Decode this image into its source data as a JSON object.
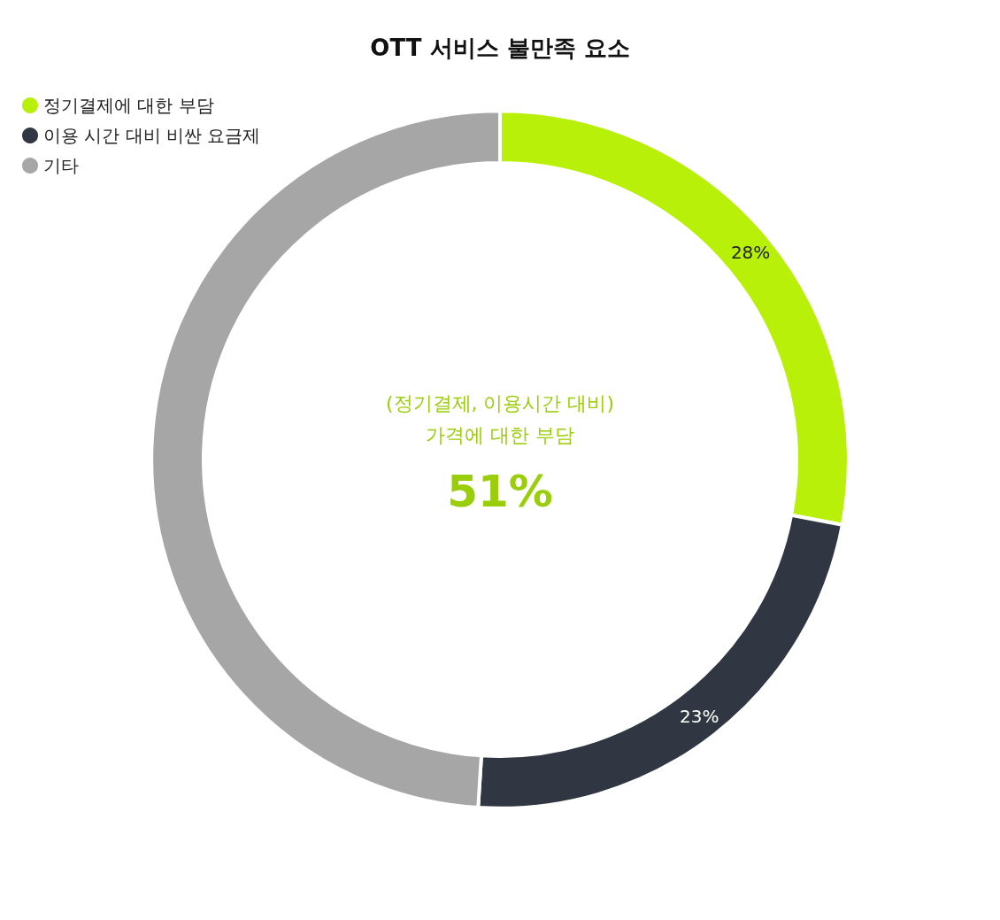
{
  "chart_data": {
    "type": "donut",
    "title": "OTT 서비스 불만족 요소",
    "categories": [
      "정기결제에 대한 부담",
      "이용 시간 대비 비싼 요금제",
      "기타"
    ],
    "values": [
      28,
      23,
      49
    ],
    "colors": [
      "#b8f00a",
      "#303642",
      "#a6a6a6"
    ],
    "value_labels": [
      "28%",
      "23%",
      null
    ],
    "annotations": [
      "(정기결제, 이용시간 대비)",
      "가격에 대한 부담",
      "51%"
    ],
    "legend": "top left"
  }
}
